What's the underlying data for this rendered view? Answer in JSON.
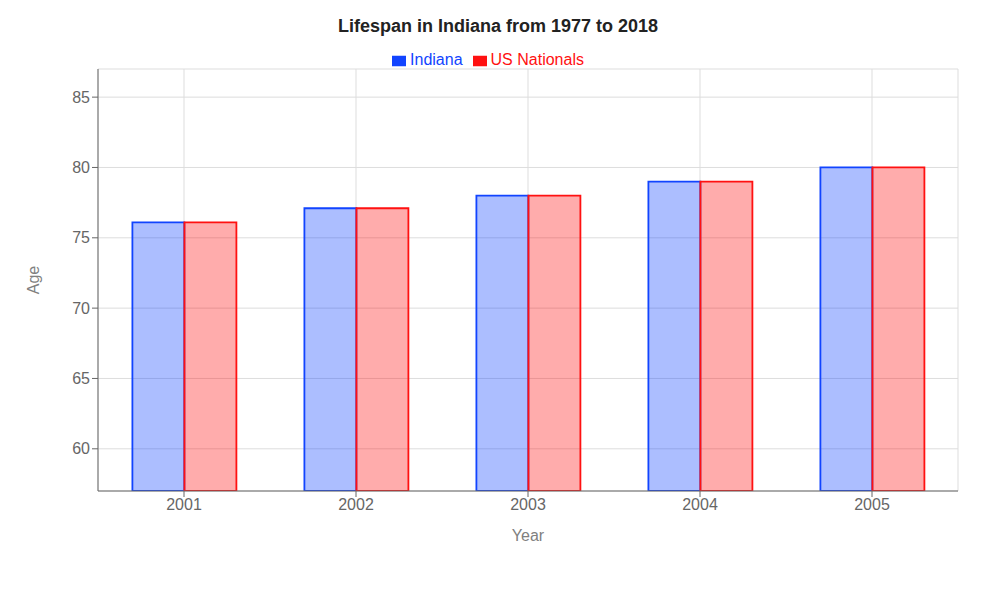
{
  "chart_data": {
    "type": "bar",
    "title": "Lifespan in Indiana from 1977 to 2018",
    "xlabel": "Year",
    "ylabel": "Age",
    "categories": [
      "2001",
      "2002",
      "2003",
      "2004",
      "2005"
    ],
    "series": [
      {
        "name": "Indiana",
        "color": "#1144ff",
        "values": [
          76.1,
          77.1,
          78.0,
          79.0,
          80.0
        ]
      },
      {
        "name": "US Nationals",
        "color": "#ff1111",
        "values": [
          76.1,
          77.1,
          78.0,
          79.0,
          80.0
        ]
      }
    ],
    "ylim": [
      57,
      87
    ],
    "yticks": [
      60,
      65,
      70,
      75,
      80,
      85
    ],
    "grid": true,
    "legend": "top"
  }
}
